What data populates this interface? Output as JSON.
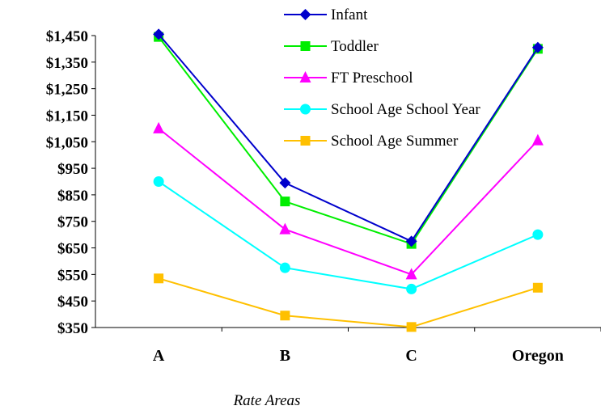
{
  "chart_data": {
    "type": "line",
    "title": "",
    "xlabel": "Rate Areas",
    "ylabel": "",
    "categories": [
      "A",
      "B",
      "C",
      "Oregon"
    ],
    "ylim": [
      350,
      1450
    ],
    "yticks": [
      "$1,450",
      "$1,350",
      "$1,250",
      "$1,150",
      "$1,050",
      "$950",
      "$850",
      "$750",
      "$650",
      "$550",
      "$450",
      "$350"
    ],
    "ytick_values": [
      1450,
      1350,
      1250,
      1150,
      1050,
      950,
      850,
      750,
      650,
      550,
      450,
      350
    ],
    "grid": false,
    "legend": "top-right",
    "series": [
      {
        "name": "Infant",
        "values": [
          1455,
          895,
          675,
          1405
        ],
        "color": "#0000CC",
        "marker": "diamond"
      },
      {
        "name": "Toddler",
        "values": [
          1445,
          825,
          665,
          1400
        ],
        "color": "#00EE00",
        "marker": "square"
      },
      {
        "name": "FT Preschool",
        "values": [
          1100,
          720,
          550,
          1055
        ],
        "color": "#FF00FF",
        "marker": "triangle"
      },
      {
        "name": "School Age School Year",
        "values": [
          900,
          575,
          495,
          700
        ],
        "color": "#00FFFF",
        "marker": "circle"
      },
      {
        "name": "School Age Summer",
        "values": [
          535,
          395,
          352,
          500
        ],
        "color": "#FFC000",
        "marker": "square"
      }
    ]
  }
}
